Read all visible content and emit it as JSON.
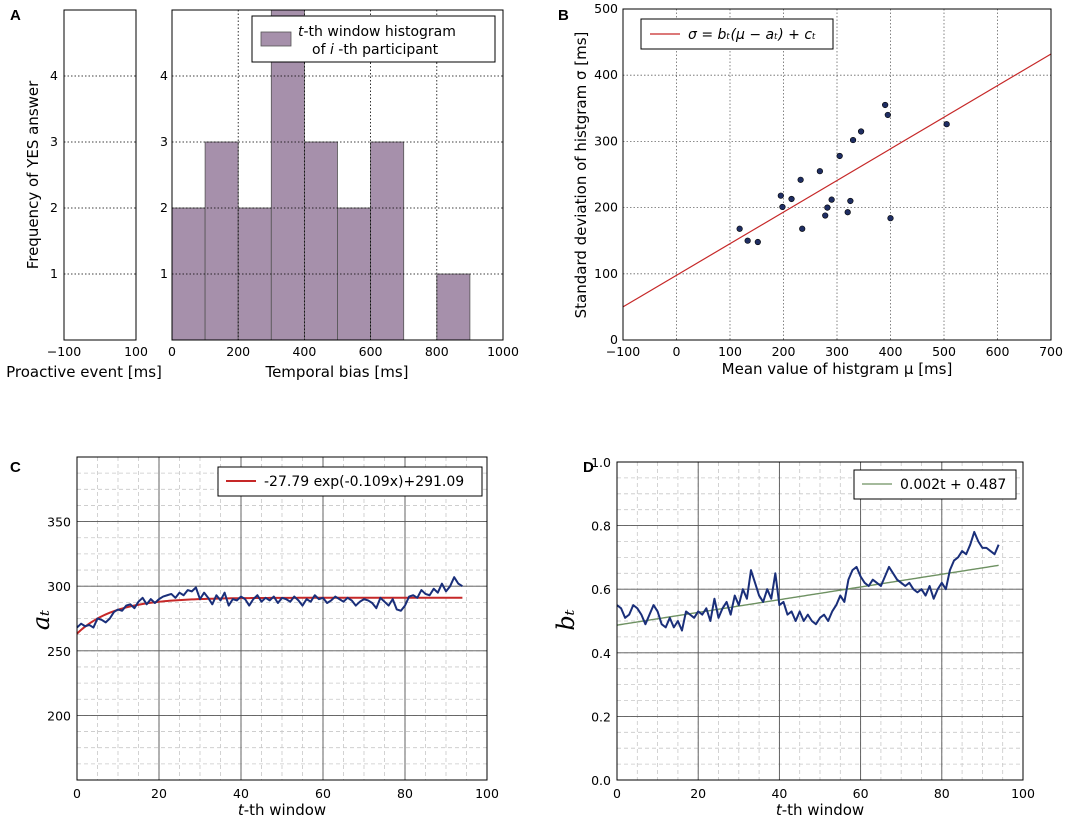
{
  "chart_data": [
    {
      "panel": "A",
      "type": "bar",
      "subplots": [
        {
          "name": "proactive",
          "xlabel": "Proactive event [ms]",
          "ylabel": "Frequency of YES answer",
          "xlim": [
            -100,
            100
          ],
          "xticks": [
            "−100",
            "100"
          ],
          "ylim": [
            0,
            5
          ],
          "yticks": [
            "1",
            "2",
            "3",
            "4"
          ],
          "bins": []
        },
        {
          "name": "temporal-bias",
          "xlabel": "Temporal bias [ms]",
          "xlim": [
            0,
            1000
          ],
          "xticks": [
            "0",
            "200",
            "400",
            "600",
            "800",
            "1000"
          ],
          "ylim": [
            0,
            5
          ],
          "yticks": [
            "1",
            "2",
            "3",
            "4"
          ],
          "bin_width": 100,
          "bins": [
            {
              "start": 0,
              "count": 2
            },
            {
              "start": 100,
              "count": 3
            },
            {
              "start": 200,
              "count": 2
            },
            {
              "start": 300,
              "count": 5
            },
            {
              "start": 400,
              "count": 3
            },
            {
              "start": 500,
              "count": 2
            },
            {
              "start": 600,
              "count": 3
            },
            {
              "start": 800,
              "count": 1
            }
          ],
          "legend": {
            "line1_italic": "t",
            "line1_rest": "-th window histogram",
            "line2_pre": "of ",
            "line2_italic": "i",
            "line2_rest": " -th participant"
          },
          "bar_color": "#a690ab"
        }
      ]
    },
    {
      "panel": "B",
      "type": "scatter",
      "xlabel": "Mean value of histgram μ [ms]",
      "ylabel": "Standard deviation of histgram σ [ms]",
      "xlim": [
        -100,
        700
      ],
      "ylim": [
        0,
        500
      ],
      "xticks": [
        "−100",
        "0",
        "100",
        "200",
        "300",
        "400",
        "500",
        "600",
        "700"
      ],
      "yticks": [
        "0",
        "100",
        "200",
        "300",
        "400",
        "500"
      ],
      "points": [
        [
          118,
          168
        ],
        [
          133,
          150
        ],
        [
          152,
          148
        ],
        [
          195,
          218
        ],
        [
          198,
          201
        ],
        [
          215,
          213
        ],
        [
          232,
          242
        ],
        [
          235,
          168
        ],
        [
          268,
          255
        ],
        [
          278,
          188
        ],
        [
          282,
          200
        ],
        [
          290,
          212
        ],
        [
          305,
          278
        ],
        [
          320,
          193
        ],
        [
          325,
          210
        ],
        [
          330,
          302
        ],
        [
          345,
          315
        ],
        [
          390,
          355
        ],
        [
          395,
          340
        ],
        [
          400,
          184
        ],
        [
          505,
          326
        ]
      ],
      "fit_line": {
        "x": [
          -100,
          700
        ],
        "y": [
          50,
          432
        ]
      },
      "legend": "σ = bₜ(μ − aₜ) + cₜ",
      "point_color": "#1f2e63",
      "line_color": "#c62828"
    },
    {
      "panel": "C",
      "type": "line",
      "xlabel_italic": "t",
      "xlabel_rest": "-th window",
      "ylabel": "aₜ",
      "xlim": [
        0,
        100
      ],
      "ylim": [
        150,
        400
      ],
      "xticks": [
        "0",
        "20",
        "40",
        "60",
        "80",
        "100"
      ],
      "yticks": [
        "200",
        "250",
        "300",
        "350"
      ],
      "series": [
        {
          "name": "a_t",
          "color": "#1a2f7a",
          "x": [
            0,
            1,
            2,
            3,
            4,
            5,
            6,
            7,
            8,
            9,
            10,
            11,
            12,
            13,
            14,
            15,
            16,
            17,
            18,
            19,
            20,
            21,
            22,
            23,
            24,
            25,
            26,
            27,
            28,
            29,
            30,
            31,
            32,
            33,
            34,
            35,
            36,
            37,
            38,
            39,
            40,
            41,
            42,
            43,
            44,
            45,
            46,
            47,
            48,
            49,
            50,
            51,
            52,
            53,
            54,
            55,
            56,
            57,
            58,
            59,
            60,
            61,
            62,
            63,
            64,
            65,
            66,
            67,
            68,
            69,
            70,
            71,
            72,
            73,
            74,
            75,
            76,
            77,
            78,
            79,
            80,
            81,
            82,
            83,
            84,
            85,
            86,
            87,
            88,
            89,
            90,
            91,
            92,
            93,
            94
          ],
          "values": [
            268,
            271,
            269,
            270,
            268,
            275,
            274,
            272,
            275,
            280,
            282,
            281,
            285,
            286,
            283,
            288,
            291,
            286,
            290,
            287,
            290,
            292,
            293,
            294,
            291,
            295,
            293,
            297,
            296,
            299,
            290,
            295,
            291,
            286,
            293,
            289,
            295,
            285,
            290,
            289,
            292,
            290,
            285,
            290,
            293,
            288,
            291,
            289,
            292,
            287,
            291,
            290,
            288,
            292,
            289,
            285,
            290,
            288,
            293,
            290,
            291,
            287,
            289,
            292,
            290,
            288,
            291,
            289,
            285,
            288,
            290,
            289,
            287,
            283,
            291,
            288,
            285,
            290,
            282,
            281,
            285,
            292,
            293,
            291,
            297,
            294,
            293,
            298,
            295,
            302,
            296,
            300,
            307,
            302,
            300
          ]
        }
      ],
      "fit": {
        "label": "-27.79 exp(-0.109x)+291.09",
        "A": -27.79,
        "k": -0.109,
        "C": 291.09,
        "color": "#c62828"
      }
    },
    {
      "panel": "D",
      "type": "line",
      "xlabel_italic": "t",
      "xlabel_rest": "-th window",
      "ylabel": "bₜ",
      "xlim": [
        0,
        100
      ],
      "ylim": [
        0.0,
        1.0
      ],
      "xticks": [
        "0",
        "20",
        "40",
        "60",
        "80",
        "100"
      ],
      "yticks": [
        "0.0",
        "0.2",
        "0.4",
        "0.6",
        "0.8",
        "1.0"
      ],
      "series": [
        {
          "name": "b_t",
          "color": "#1a2f7a",
          "x": [
            0,
            1,
            2,
            3,
            4,
            5,
            6,
            7,
            8,
            9,
            10,
            11,
            12,
            13,
            14,
            15,
            16,
            17,
            18,
            19,
            20,
            21,
            22,
            23,
            24,
            25,
            26,
            27,
            28,
            29,
            30,
            31,
            32,
            33,
            34,
            35,
            36,
            37,
            38,
            39,
            40,
            41,
            42,
            43,
            44,
            45,
            46,
            47,
            48,
            49,
            50,
            51,
            52,
            53,
            54,
            55,
            56,
            57,
            58,
            59,
            60,
            61,
            62,
            63,
            64,
            65,
            66,
            67,
            68,
            69,
            70,
            71,
            72,
            73,
            74,
            75,
            76,
            77,
            78,
            79,
            80,
            81,
            82,
            83,
            84,
            85,
            86,
            87,
            88,
            89,
            90,
            91,
            92,
            93,
            94
          ],
          "values": [
            0.55,
            0.54,
            0.51,
            0.52,
            0.55,
            0.54,
            0.52,
            0.49,
            0.52,
            0.55,
            0.53,
            0.49,
            0.48,
            0.51,
            0.48,
            0.5,
            0.47,
            0.53,
            0.52,
            0.51,
            0.53,
            0.52,
            0.54,
            0.5,
            0.57,
            0.51,
            0.54,
            0.56,
            0.52,
            0.58,
            0.55,
            0.6,
            0.57,
            0.66,
            0.62,
            0.58,
            0.56,
            0.6,
            0.57,
            0.65,
            0.55,
            0.56,
            0.52,
            0.53,
            0.5,
            0.53,
            0.5,
            0.52,
            0.5,
            0.49,
            0.51,
            0.52,
            0.5,
            0.53,
            0.55,
            0.58,
            0.56,
            0.63,
            0.66,
            0.67,
            0.64,
            0.62,
            0.61,
            0.63,
            0.62,
            0.61,
            0.64,
            0.67,
            0.65,
            0.63,
            0.62,
            0.61,
            0.62,
            0.6,
            0.59,
            0.6,
            0.58,
            0.61,
            0.57,
            0.6,
            0.62,
            0.6,
            0.66,
            0.69,
            0.7,
            0.72,
            0.71,
            0.74,
            0.78,
            0.75,
            0.73,
            0.73,
            0.72,
            0.71,
            0.74
          ]
        }
      ],
      "fit": {
        "label": "0.002t + 0.487",
        "slope": 0.002,
        "intercept": 0.487,
        "color": "#6e9162"
      }
    }
  ]
}
